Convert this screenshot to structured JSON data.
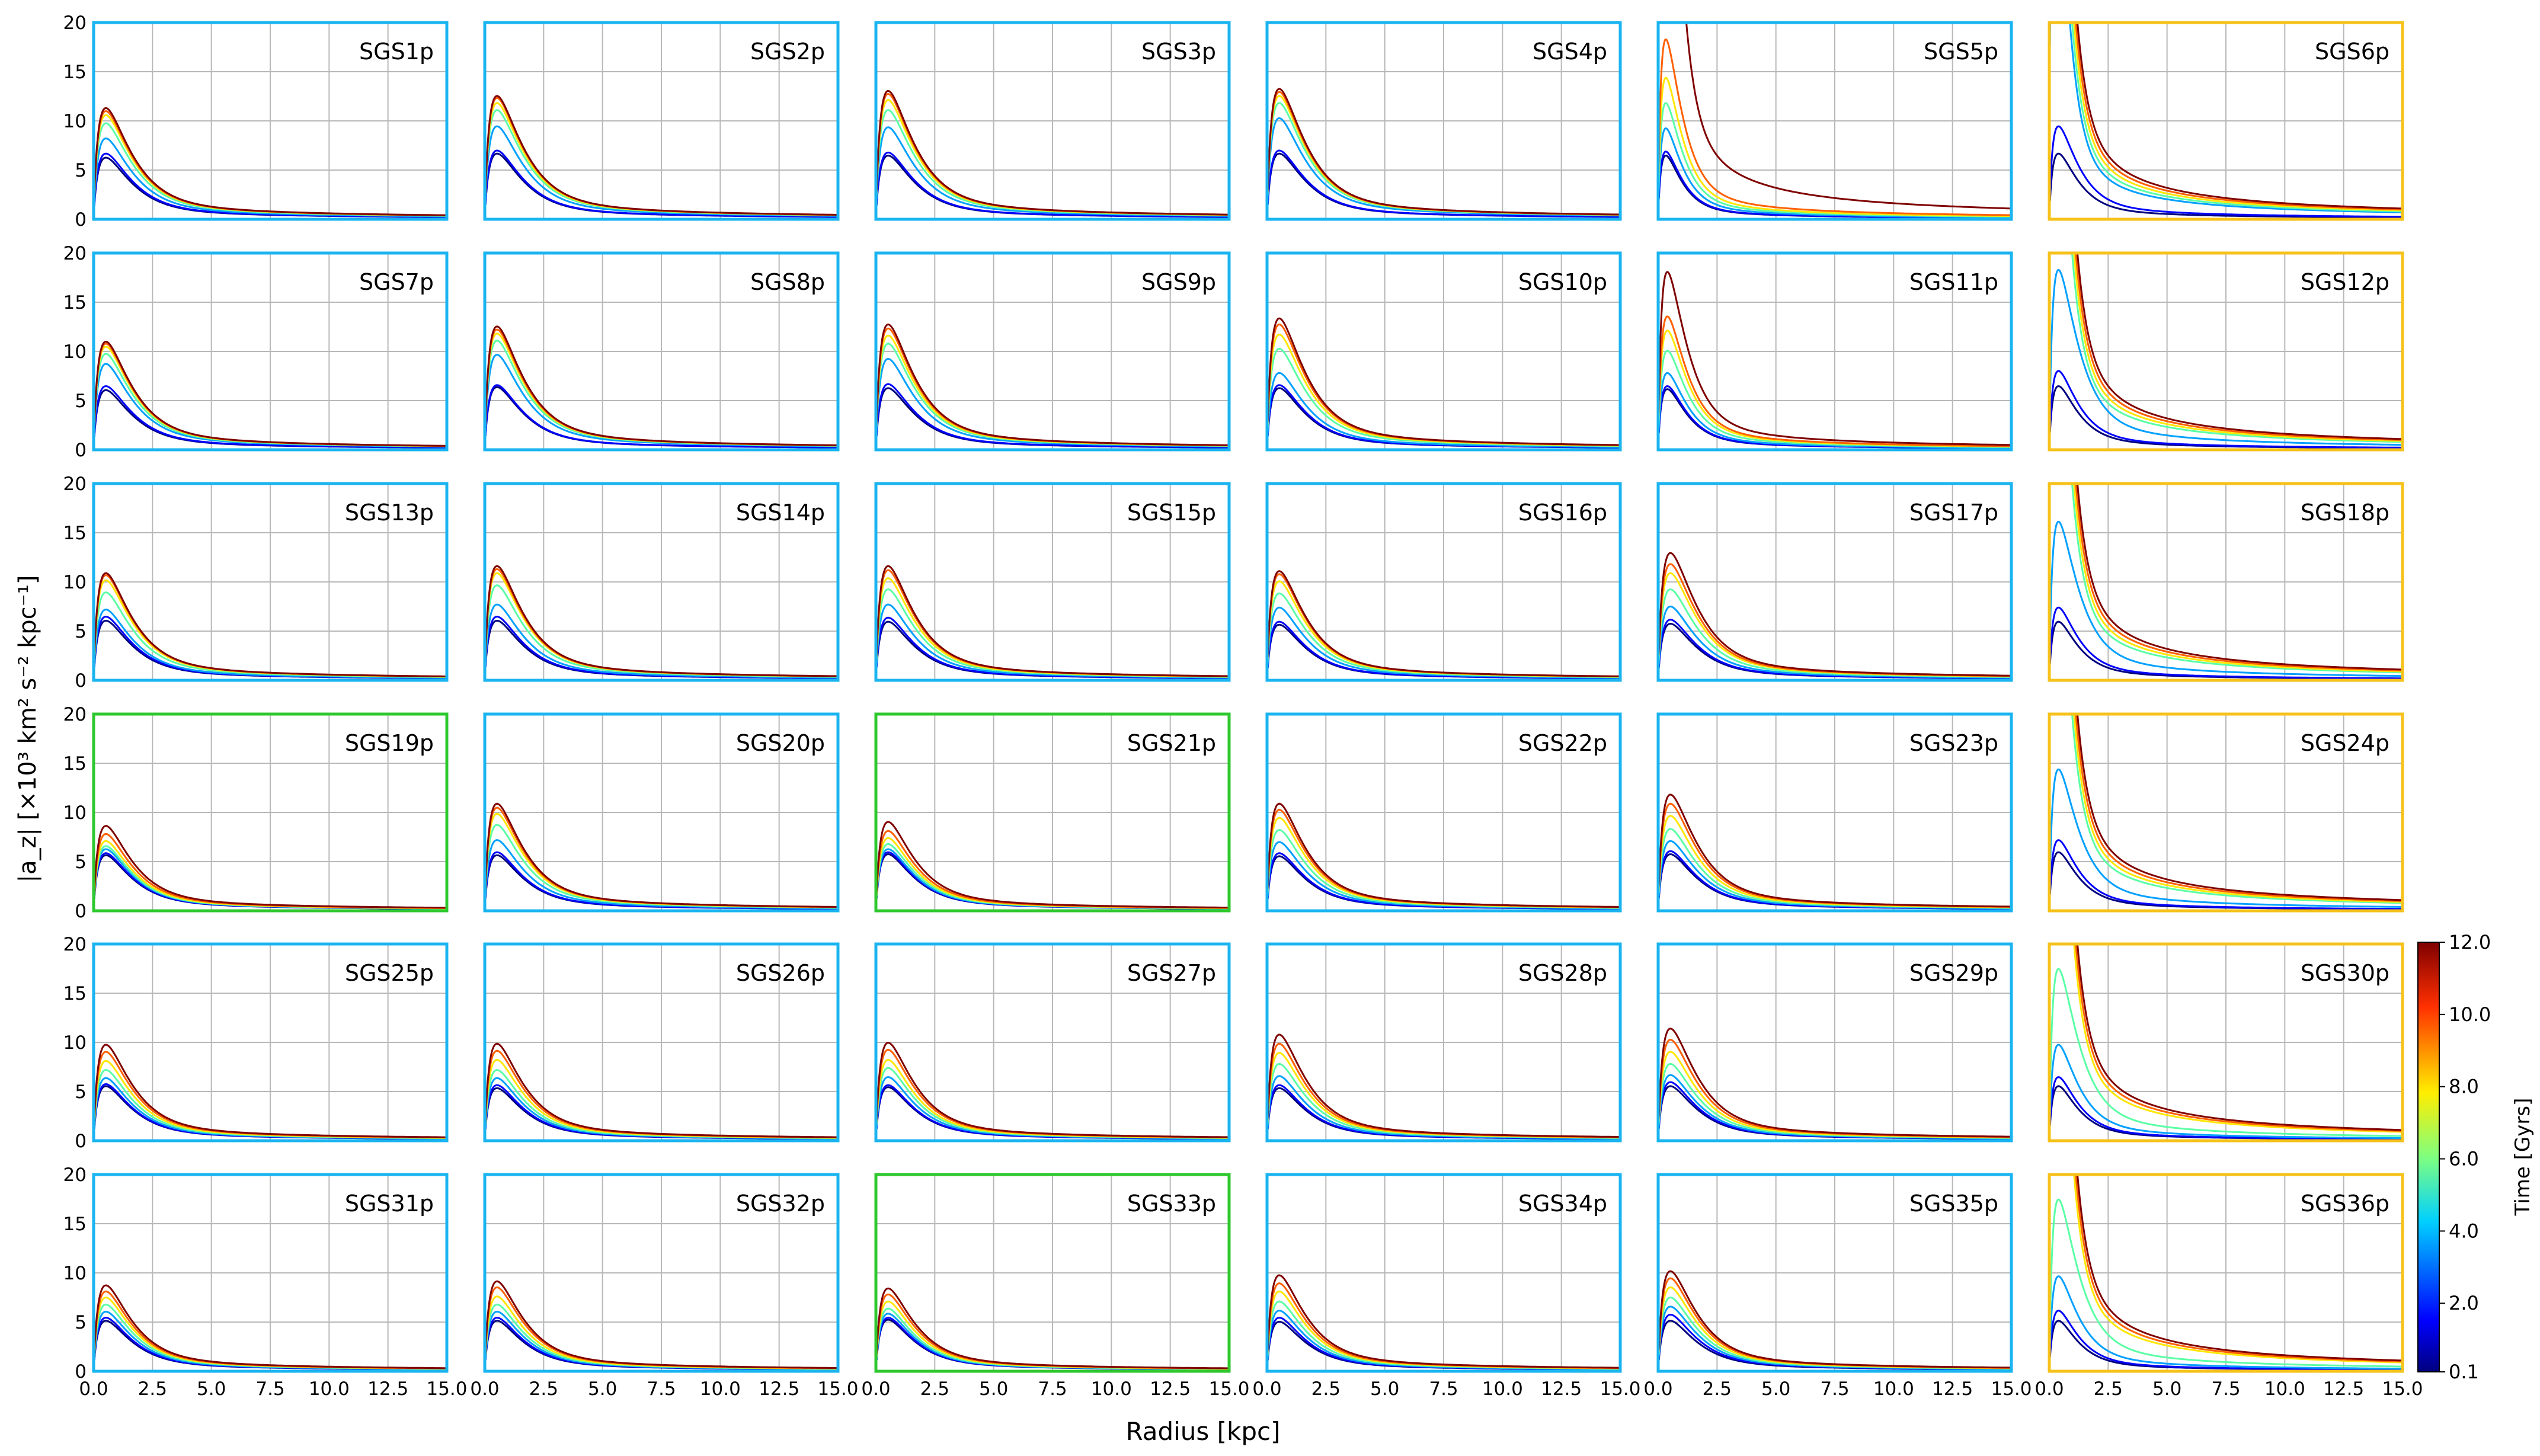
{
  "figure": {
    "ylabel": "|a_z| [×10³ km² s⁻² kpc⁻¹]",
    "xlabel": "Radius [kpc]",
    "colorbar": {
      "label": "Time [Gyrs]",
      "ticks": [
        "12.0",
        "10.0",
        "8.0",
        "6.0",
        "4.0",
        "2.0",
        "0.1"
      ]
    }
  },
  "chart_data": {
    "type": "line",
    "layout": "6x6 grid of small-multiple line charts",
    "x_range": [
      0,
      15
    ],
    "y_range": [
      0,
      20
    ],
    "x_ticks": [
      "0.0",
      "2.5",
      "5.0",
      "7.5",
      "10.0",
      "12.5",
      "15.0"
    ],
    "y_ticks": [
      "0",
      "5",
      "10",
      "15",
      "20"
    ],
    "grid": true,
    "time_snapshots_gyr": [
      0.1,
      2.0,
      4.0,
      6.0,
      8.0,
      10.0,
      12.0
    ],
    "colormap": "jet",
    "colormap_stops": [
      "#00007f",
      "#0000ff",
      "#00a0ff",
      "#5affa5",
      "#ffe600",
      "#ff6000",
      "#7f0000"
    ],
    "frame_colors": {
      "blue": "#1ab4f0",
      "green": "#2ec82e",
      "gold": "#f6c21a"
    },
    "x_samples": [
      0.05,
      0.2,
      0.4,
      0.6,
      0.8,
      1.0,
      1.2,
      1.5,
      2.0,
      2.5,
      3.0,
      3.5,
      4.0,
      5.0,
      6.0,
      7.0,
      8.0,
      9.0,
      10.0,
      11.0,
      12.0,
      13.0,
      14.0,
      15.0
    ],
    "panels": [
      {
        "name": "SGS1p",
        "frame": "blue",
        "peak_r": 0.8,
        "peaks": [
          6.1,
          6.5,
          8.0,
          9.5,
          10.3,
          10.7,
          11.0
        ]
      },
      {
        "name": "SGS2p",
        "frame": "blue",
        "peak_r": 0.8,
        "peaks": [
          6.5,
          6.8,
          9.2,
          10.8,
          11.5,
          12.0,
          12.2
        ]
      },
      {
        "name": "SGS3p",
        "frame": "blue",
        "peak_r": 0.8,
        "peaks": [
          6.3,
          6.6,
          9.1,
          10.8,
          11.8,
          12.4,
          12.7
        ]
      },
      {
        "name": "SGS4p",
        "frame": "blue",
        "peak_r": 0.8,
        "peaks": [
          6.5,
          6.8,
          10.0,
          11.5,
          12.2,
          12.6,
          12.9
        ]
      },
      {
        "name": "SGS5p",
        "frame": "blue",
        "peak_r": 0.5,
        "peaks": [
          6.3,
          6.7,
          9.0,
          11.5,
          14.0,
          17.8,
          20.0
        ]
      },
      {
        "name": "SGS6p",
        "frame": "gold",
        "peak_r": 0.6,
        "peaks": [
          6.5,
          9.2,
          20.0,
          20.0,
          20.0,
          20.0,
          20.0
        ]
      },
      {
        "name": "SGS7p",
        "frame": "blue",
        "peak_r": 0.8,
        "peaks": [
          5.9,
          6.3,
          8.5,
          9.5,
          10.2,
          10.5,
          10.7
        ]
      },
      {
        "name": "SGS8p",
        "frame": "blue",
        "peak_r": 0.8,
        "peaks": [
          6.2,
          6.4,
          9.4,
          10.8,
          11.5,
          11.9,
          12.2
        ]
      },
      {
        "name": "SGS9p",
        "frame": "blue",
        "peak_r": 0.8,
        "peaks": [
          6.1,
          6.5,
          9.0,
          10.5,
          11.3,
          12.0,
          12.4
        ]
      },
      {
        "name": "SGS10p",
        "frame": "blue",
        "peak_r": 0.8,
        "peaks": [
          6.1,
          6.4,
          7.6,
          10.0,
          11.4,
          12.4,
          13.0
        ]
      },
      {
        "name": "SGS11p",
        "frame": "blue",
        "peak_r": 0.6,
        "peaks": [
          6.0,
          6.3,
          7.6,
          9.8,
          11.8,
          13.2,
          17.6
        ]
      },
      {
        "name": "SGS12p",
        "frame": "gold",
        "peak_r": 0.6,
        "peaks": [
          6.3,
          7.8,
          17.8,
          20.0,
          20.0,
          20.0,
          20.0
        ]
      },
      {
        "name": "SGS13p",
        "frame": "blue",
        "peak_r": 0.8,
        "peaks": [
          5.9,
          6.3,
          7.0,
          8.7,
          9.9,
          10.4,
          10.6
        ]
      },
      {
        "name": "SGS14p",
        "frame": "blue",
        "peak_r": 0.8,
        "peaks": [
          5.9,
          6.3,
          7.5,
          9.4,
          10.6,
          11.0,
          11.3
        ]
      },
      {
        "name": "SGS15p",
        "frame": "blue",
        "peak_r": 0.8,
        "peaks": [
          5.8,
          6.2,
          7.5,
          9.0,
          10.1,
          10.9,
          11.3
        ]
      },
      {
        "name": "SGS16p",
        "frame": "blue",
        "peak_r": 0.8,
        "peaks": [
          5.5,
          5.8,
          7.2,
          8.6,
          9.8,
          10.5,
          10.8
        ]
      },
      {
        "name": "SGS17p",
        "frame": "blue",
        "peak_r": 0.8,
        "peaks": [
          5.6,
          6.0,
          7.3,
          9.0,
          10.6,
          11.5,
          12.6
        ]
      },
      {
        "name": "SGS18p",
        "frame": "gold",
        "peak_r": 0.6,
        "peaks": [
          5.8,
          7.2,
          15.7,
          20.0,
          20.0,
          20.0,
          20.0
        ]
      },
      {
        "name": "SGS19p",
        "frame": "green",
        "peak_r": 0.8,
        "peaks": [
          5.5,
          5.7,
          6.1,
          6.4,
          6.9,
          7.6,
          8.4
        ]
      },
      {
        "name": "SGS20p",
        "frame": "blue",
        "peak_r": 0.8,
        "peaks": [
          5.5,
          5.8,
          7.0,
          8.5,
          9.6,
          10.2,
          10.6
        ]
      },
      {
        "name": "SGS21p",
        "frame": "green",
        "peak_r": 0.8,
        "peaks": [
          5.6,
          5.8,
          6.1,
          6.6,
          7.2,
          7.9,
          8.8
        ]
      },
      {
        "name": "SGS22p",
        "frame": "blue",
        "peak_r": 0.8,
        "peaks": [
          5.4,
          5.7,
          6.8,
          8.0,
          9.2,
          10.0,
          10.6
        ]
      },
      {
        "name": "SGS23p",
        "frame": "blue",
        "peak_r": 0.8,
        "peaks": [
          5.6,
          5.9,
          6.9,
          8.1,
          9.4,
          10.6,
          11.5
        ]
      },
      {
        "name": "SGS24p",
        "frame": "gold",
        "peak_r": 0.6,
        "peaks": [
          5.8,
          7.0,
          14.0,
          20.0,
          20.0,
          20.0,
          20.0
        ]
      },
      {
        "name": "SGS25p",
        "frame": "blue",
        "peak_r": 0.8,
        "peaks": [
          5.4,
          5.6,
          6.2,
          7.0,
          7.9,
          8.8,
          9.5
        ]
      },
      {
        "name": "SGS26p",
        "frame": "blue",
        "peak_r": 0.8,
        "peaks": [
          5.2,
          5.5,
          6.2,
          7.0,
          8.0,
          8.9,
          9.6
        ]
      },
      {
        "name": "SGS27p",
        "frame": "blue",
        "peak_r": 0.8,
        "peaks": [
          5.3,
          5.5,
          6.3,
          7.2,
          8.0,
          9.0,
          9.7
        ]
      },
      {
        "name": "SGS28p",
        "frame": "blue",
        "peak_r": 0.8,
        "peaks": [
          5.2,
          5.5,
          6.4,
          7.6,
          8.7,
          9.6,
          10.5
        ]
      },
      {
        "name": "SGS29p",
        "frame": "blue",
        "peak_r": 0.8,
        "peaks": [
          5.4,
          5.8,
          6.5,
          7.6,
          8.8,
          10.0,
          11.1
        ]
      },
      {
        "name": "SGS30p",
        "frame": "gold",
        "peak_r": 0.6,
        "peaks": [
          5.4,
          6.3,
          9.5,
          17.0,
          20.0,
          20.0,
          20.0
        ]
      },
      {
        "name": "SGS31p",
        "frame": "blue",
        "peak_r": 0.8,
        "peaks": [
          5.0,
          5.3,
          5.9,
          6.6,
          7.3,
          7.9,
          8.5
        ]
      },
      {
        "name": "SGS32p",
        "frame": "blue",
        "peak_r": 0.8,
        "peaks": [
          5.0,
          5.3,
          5.9,
          6.6,
          7.4,
          8.3,
          8.9
        ]
      },
      {
        "name": "SGS33p",
        "frame": "green",
        "peak_r": 0.8,
        "peaks": [
          5.1,
          5.3,
          5.7,
          6.2,
          6.9,
          7.6,
          8.2
        ]
      },
      {
        "name": "SGS34p",
        "frame": "blue",
        "peak_r": 0.8,
        "peaks": [
          4.9,
          5.3,
          6.0,
          6.9,
          7.9,
          8.7,
          9.5
        ]
      },
      {
        "name": "SGS35p",
        "frame": "blue",
        "peak_r": 0.8,
        "peaks": [
          5.0,
          5.6,
          6.4,
          7.3,
          8.3,
          9.2,
          9.9
        ]
      },
      {
        "name": "SGS36p",
        "frame": "gold",
        "peak_r": 0.6,
        "peaks": [
          5.0,
          6.0,
          9.4,
          17.0,
          20.0,
          20.0,
          20.0
        ]
      }
    ]
  }
}
